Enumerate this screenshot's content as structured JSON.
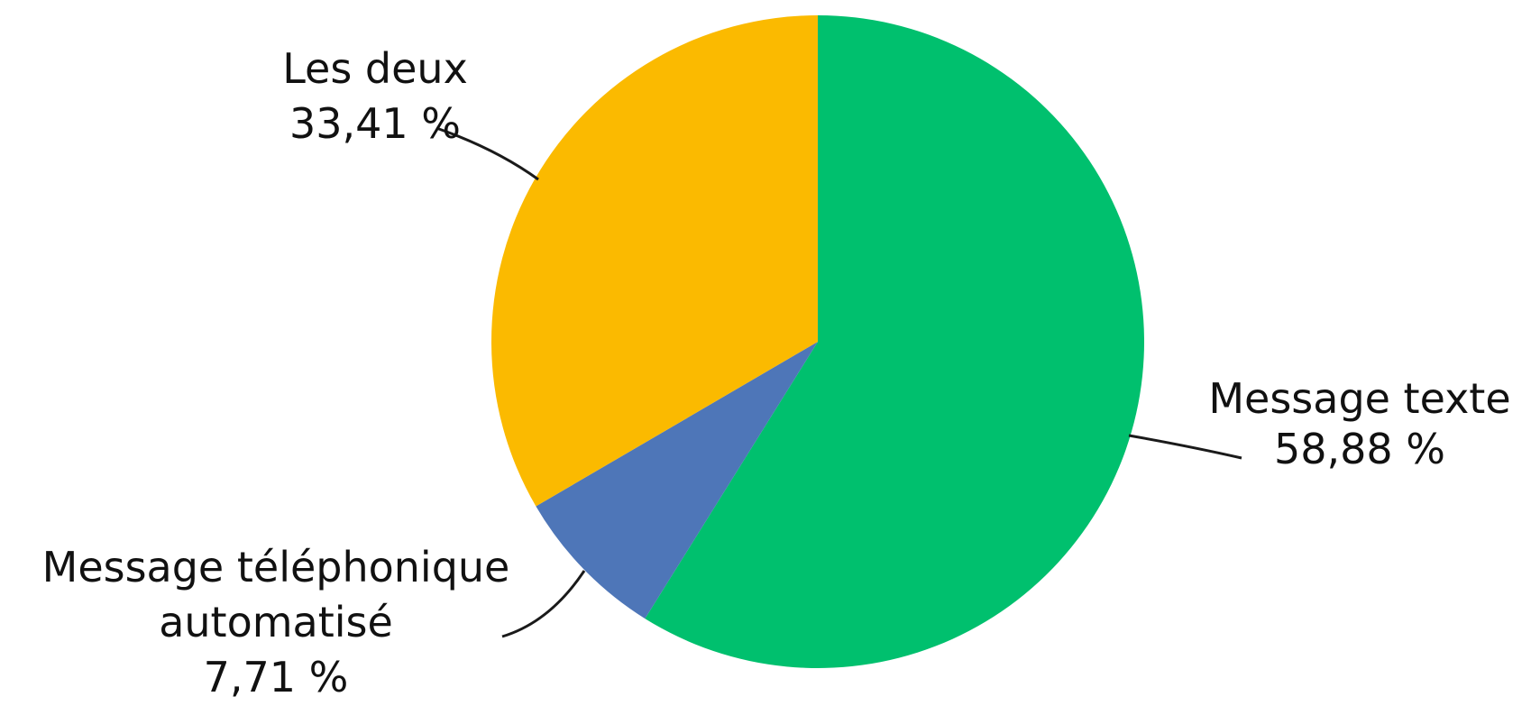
{
  "chart_data": {
    "type": "pie",
    "start": "top",
    "direction": "clockwise",
    "slices": [
      {
        "name": "Message texte",
        "value": 58.88,
        "label_lines": [
          "Message texte",
          "58,88 %"
        ],
        "color": "#00C06E"
      },
      {
        "name": "Message téléphonique automatisé",
        "value": 7.71,
        "label_lines": [
          "Message téléphonique",
          "automatisé",
          "7,71 %"
        ],
        "color": "#4E76B8"
      },
      {
        "name": "Les deux",
        "value": 33.41,
        "label_lines": [
          "Les deux",
          "33,41 %"
        ],
        "color": "#FBBA00"
      }
    ]
  }
}
